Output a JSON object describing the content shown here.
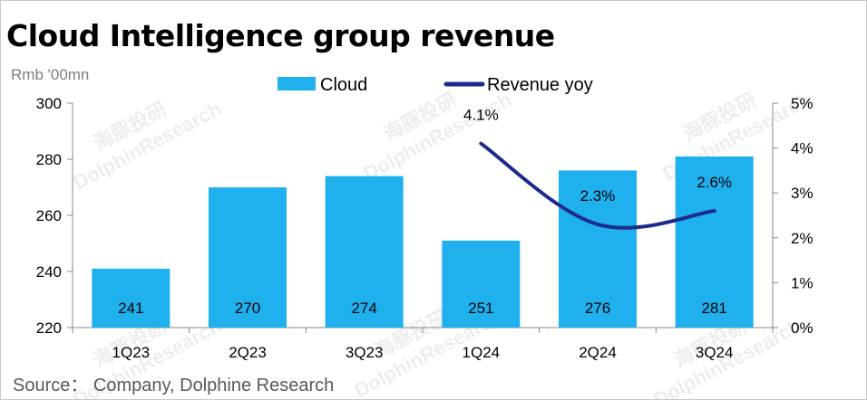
{
  "chart_data": {
    "type": "bar",
    "title": "Cloud Intelligence group revenue",
    "unit_label": "Rmb '00mn",
    "categories": [
      "1Q23",
      "2Q23",
      "3Q23",
      "1Q24",
      "2Q24",
      "3Q24"
    ],
    "series": [
      {
        "name": "Cloud",
        "type": "bar",
        "axis": "left",
        "color": "#1fb0ee",
        "values": [
          241,
          270,
          274,
          251,
          276,
          281
        ]
      },
      {
        "name": "Revenue yoy",
        "type": "line",
        "axis": "right",
        "color": "#1c2c8c",
        "values": [
          null,
          null,
          null,
          4.1,
          2.3,
          2.6
        ],
        "labels": [
          "",
          "",
          "",
          "4.1%",
          "2.3%",
          "2.6%"
        ]
      }
    ],
    "ylim": [
      220,
      300
    ],
    "yticks": [
      "220",
      "240",
      "260",
      "280",
      "300"
    ],
    "y2lim": [
      0,
      5
    ],
    "y2ticks": [
      "0%",
      "1%",
      "2%",
      "3%",
      "4%",
      "5%"
    ],
    "legend": "top-center",
    "grid": false
  },
  "source": "Source：  Company, Dolphine Research",
  "watermark": {
    "cn": "海豚投研",
    "en": "DolphinResearch"
  }
}
